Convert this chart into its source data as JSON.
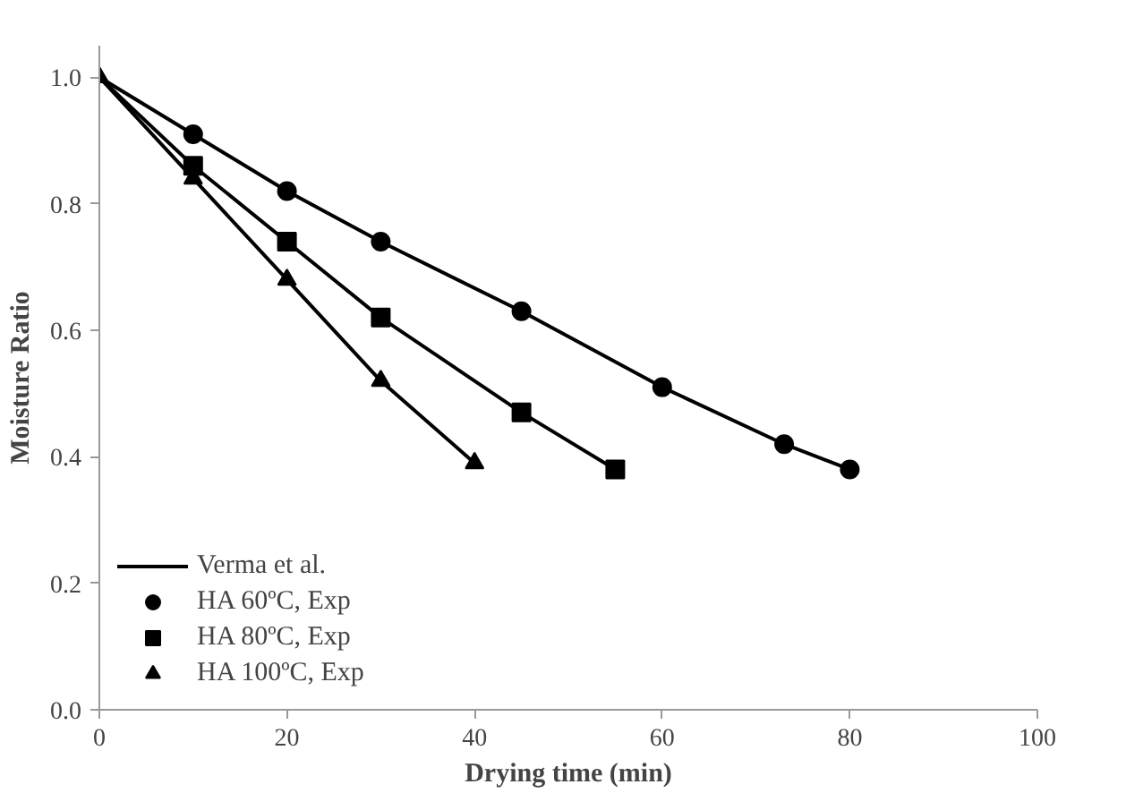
{
  "chart_data": {
    "type": "line",
    "xlabel": "Drying time (min)",
    "ylabel": "Moisture Ratio",
    "xlim": [
      0,
      100
    ],
    "xticks": [
      0,
      20,
      40,
      60,
      80,
      100
    ],
    "ylim": [
      0,
      1.05
    ],
    "yticks": [
      {
        "value": 0,
        "label": "0.0"
      },
      0.2,
      0.4,
      0.6,
      0.8,
      {
        "value": 1,
        "label": "1.0"
      }
    ],
    "grid": false,
    "legend": "bottom left",
    "series": [
      {
        "name": "Verma et al.",
        "color": "#000000",
        "marker": "none",
        "x": [
          0,
          10,
          20,
          30,
          45,
          60,
          73,
          80
        ],
        "values": [
          1.0,
          0.91,
          0.82,
          0.74,
          0.63,
          0.51,
          0.42,
          0.38
        ]
      },
      {
        "color": "#000000",
        "marker": "none",
        "x": [
          0,
          10,
          20,
          30,
          45,
          55
        ],
        "values": [
          1.0,
          0.86,
          0.74,
          0.62,
          0.47,
          0.38
        ]
      },
      {
        "color": "#000000",
        "marker": "none",
        "x": [
          0,
          10,
          20,
          30,
          40
        ],
        "values": [
          1.0,
          0.84,
          0.68,
          0.52,
          0.39
        ]
      },
      {
        "name": "HA 60ºC, Exp",
        "type": "scatter",
        "color": "#000000",
        "marker": "circle",
        "x": [
          10,
          20,
          30,
          45,
          60,
          73,
          80
        ],
        "values": [
          0.91,
          0.82,
          0.74,
          0.63,
          0.51,
          0.42,
          0.38
        ]
      },
      {
        "name": "HA 80ºC, Exp",
        "type": "scatter",
        "color": "#000000",
        "marker": "square",
        "x": [
          10,
          20,
          30,
          45,
          55
        ],
        "values": [
          0.86,
          0.74,
          0.62,
          0.47,
          0.38
        ]
      },
      {
        "name": "HA 100ºC, Exp",
        "type": "scatter",
        "color": "#000000",
        "marker": "triangle",
        "x": [
          0,
          10,
          20,
          30,
          40
        ],
        "values": [
          1.0,
          0.84,
          0.68,
          0.52,
          0.39
        ]
      }
    ]
  }
}
